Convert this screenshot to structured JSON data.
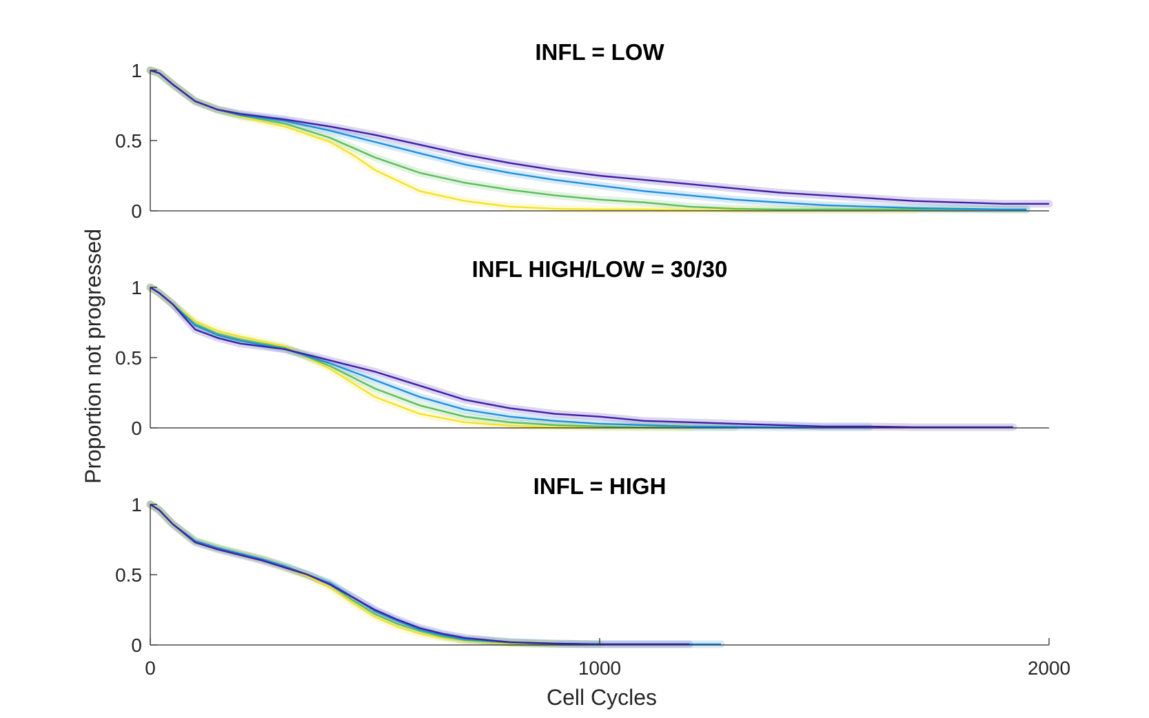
{
  "figure": {
    "ylabel": "Proportion not progressed",
    "xlabel": "Cell Cycles"
  },
  "chart_data": [
    {
      "type": "line",
      "title": "INFL = LOW",
      "xlabel": "",
      "ylabel": "",
      "xlim": [
        0,
        2000
      ],
      "ylim": [
        0,
        1
      ],
      "yticks": [
        "0",
        "0.5",
        "1"
      ],
      "xticks": [],
      "grid": false,
      "series": [
        {
          "color": "#3f1ea8",
          "x": [
            0,
            20,
            50,
            100,
            150,
            200,
            300,
            400,
            500,
            600,
            700,
            800,
            900,
            1000,
            1100,
            1200,
            1300,
            1400,
            1500,
            1600,
            1700,
            1800,
            1900,
            2000
          ],
          "y": [
            1.0,
            0.98,
            0.9,
            0.78,
            0.72,
            0.69,
            0.65,
            0.6,
            0.54,
            0.47,
            0.4,
            0.34,
            0.29,
            0.25,
            0.22,
            0.19,
            0.16,
            0.13,
            0.11,
            0.09,
            0.07,
            0.06,
            0.05,
            0.05
          ]
        },
        {
          "color": "#1f8fdc",
          "x": [
            0,
            20,
            50,
            100,
            150,
            200,
            300,
            400,
            500,
            600,
            700,
            800,
            900,
            1000,
            1100,
            1200,
            1300,
            1400,
            1500,
            1600,
            1700,
            1800,
            1900,
            1950
          ],
          "y": [
            1.0,
            0.98,
            0.9,
            0.78,
            0.72,
            0.68,
            0.64,
            0.57,
            0.49,
            0.41,
            0.33,
            0.27,
            0.22,
            0.18,
            0.14,
            0.11,
            0.08,
            0.06,
            0.04,
            0.03,
            0.02,
            0.015,
            0.01,
            0.01
          ]
        },
        {
          "color": "#5cbd5c",
          "x": [
            0,
            20,
            50,
            100,
            150,
            200,
            300,
            400,
            500,
            600,
            700,
            800,
            900,
            1000,
            1100,
            1200,
            1300,
            1400,
            1600,
            1800,
            1950
          ],
          "y": [
            1.0,
            0.98,
            0.9,
            0.78,
            0.72,
            0.68,
            0.62,
            0.52,
            0.38,
            0.27,
            0.2,
            0.15,
            0.11,
            0.08,
            0.06,
            0.03,
            0.015,
            0.01,
            0.01,
            0.01,
            0.01
          ]
        },
        {
          "color": "#f3e22a",
          "x": [
            0,
            20,
            50,
            100,
            150,
            200,
            300,
            400,
            450,
            500,
            600,
            700,
            800,
            900,
            1000,
            1100,
            1200,
            1400,
            1600,
            1700
          ],
          "y": [
            1.0,
            0.98,
            0.9,
            0.78,
            0.72,
            0.67,
            0.6,
            0.49,
            0.4,
            0.29,
            0.14,
            0.07,
            0.03,
            0.015,
            0.01,
            0.01,
            0.005,
            0.005,
            0.005,
            0.005
          ]
        }
      ]
    },
    {
      "type": "line",
      "title": "INFL HIGH/LOW = 30/30",
      "xlabel": "",
      "ylabel": "",
      "xlim": [
        0,
        2000
      ],
      "ylim": [
        0,
        1
      ],
      "yticks": [
        "0",
        "0.5",
        "1"
      ],
      "xticks": [],
      "grid": false,
      "series": [
        {
          "color": "#3f1ea8",
          "x": [
            0,
            20,
            50,
            100,
            150,
            200,
            300,
            400,
            500,
            600,
            700,
            800,
            900,
            1000,
            1100,
            1200,
            1300,
            1400,
            1500,
            1600,
            1700,
            1800,
            1920
          ],
          "y": [
            1.0,
            0.96,
            0.88,
            0.7,
            0.64,
            0.6,
            0.56,
            0.48,
            0.4,
            0.3,
            0.2,
            0.14,
            0.1,
            0.08,
            0.05,
            0.04,
            0.03,
            0.02,
            0.01,
            0.01,
            0.005,
            0.005,
            0.005
          ]
        },
        {
          "color": "#1f8fdc",
          "x": [
            0,
            20,
            50,
            100,
            150,
            200,
            300,
            400,
            500,
            600,
            700,
            800,
            900,
            1000,
            1100,
            1200,
            1400,
            1600
          ],
          "y": [
            1.0,
            0.96,
            0.88,
            0.73,
            0.66,
            0.62,
            0.56,
            0.46,
            0.34,
            0.22,
            0.13,
            0.08,
            0.05,
            0.03,
            0.02,
            0.01,
            0.005,
            0.005
          ]
        },
        {
          "color": "#5cbd5c",
          "x": [
            0,
            20,
            50,
            100,
            150,
            200,
            300,
            400,
            500,
            600,
            700,
            800,
            900,
            1000,
            1100,
            1200,
            1300
          ],
          "y": [
            1.0,
            0.96,
            0.88,
            0.74,
            0.67,
            0.63,
            0.57,
            0.44,
            0.28,
            0.16,
            0.08,
            0.04,
            0.02,
            0.01,
            0.005,
            0.005,
            0.005
          ]
        },
        {
          "color": "#f3e22a",
          "x": [
            0,
            20,
            50,
            100,
            150,
            200,
            300,
            400,
            500,
            600,
            700,
            800,
            900,
            1000,
            1200
          ],
          "y": [
            1.0,
            0.96,
            0.88,
            0.76,
            0.69,
            0.65,
            0.58,
            0.42,
            0.22,
            0.1,
            0.04,
            0.015,
            0.005,
            0.005,
            0.005
          ]
        }
      ]
    },
    {
      "type": "line",
      "title": "INFL = HIGH",
      "xlabel": "",
      "ylabel": "",
      "xlim": [
        0,
        2000
      ],
      "ylim": [
        0,
        1
      ],
      "yticks": [
        "0",
        "0.5",
        "1"
      ],
      "xticks": [
        "0",
        "1000",
        "2000"
      ],
      "grid": false,
      "series": [
        {
          "color": "#3f1ea8",
          "x": [
            0,
            20,
            50,
            100,
            150,
            200,
            250,
            300,
            350,
            400,
            450,
            500,
            550,
            600,
            650,
            700,
            800,
            900,
            1000,
            1100,
            1200
          ],
          "y": [
            1.0,
            0.96,
            0.86,
            0.73,
            0.68,
            0.64,
            0.6,
            0.55,
            0.5,
            0.43,
            0.34,
            0.25,
            0.18,
            0.12,
            0.08,
            0.05,
            0.02,
            0.01,
            0.005,
            0.005,
            0.005
          ]
        },
        {
          "color": "#1f8fdc",
          "x": [
            0,
            20,
            50,
            100,
            150,
            200,
            250,
            300,
            350,
            400,
            450,
            500,
            550,
            600,
            650,
            700,
            800,
            900,
            1000,
            1100,
            1200,
            1270
          ],
          "y": [
            1.0,
            0.96,
            0.86,
            0.74,
            0.69,
            0.65,
            0.61,
            0.56,
            0.5,
            0.44,
            0.34,
            0.24,
            0.17,
            0.11,
            0.07,
            0.04,
            0.02,
            0.01,
            0.005,
            0.005,
            0.005,
            0.005
          ]
        },
        {
          "color": "#5cbd5c",
          "x": [
            0,
            20,
            50,
            100,
            150,
            200,
            250,
            300,
            350,
            400,
            450,
            500,
            550,
            600,
            650,
            700,
            800,
            900,
            1000
          ],
          "y": [
            1.0,
            0.96,
            0.86,
            0.74,
            0.69,
            0.65,
            0.61,
            0.56,
            0.5,
            0.43,
            0.32,
            0.22,
            0.15,
            0.1,
            0.06,
            0.035,
            0.015,
            0.005,
            0.005
          ]
        },
        {
          "color": "#f3e22a",
          "x": [
            0,
            20,
            50,
            100,
            150,
            200,
            250,
            300,
            350,
            400,
            450,
            500,
            550,
            600,
            650,
            700,
            800,
            900
          ],
          "y": [
            1.0,
            0.96,
            0.86,
            0.74,
            0.69,
            0.65,
            0.61,
            0.55,
            0.49,
            0.41,
            0.3,
            0.2,
            0.13,
            0.08,
            0.05,
            0.03,
            0.01,
            0.005
          ]
        }
      ]
    }
  ]
}
